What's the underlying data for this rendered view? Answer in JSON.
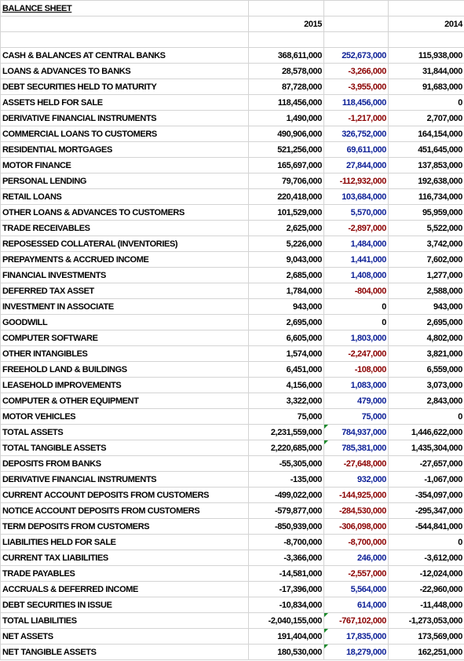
{
  "header": {
    "title": "BALANCE SHEET",
    "columns": [
      "2015",
      "2014"
    ]
  },
  "table": {
    "rows": [
      [
        "CASH & BALANCES AT CENTRAL BANKS",
        "368,611,000",
        "252,673,000",
        "115,938,000"
      ],
      [
        "LOANS & ADVANCES TO BANKS",
        "28,578,000",
        "-3,266,000",
        "31,844,000"
      ],
      [
        "DEBT SECURITIES HELD TO MATURITY",
        "87,728,000",
        "-3,955,000",
        "91,683,000"
      ],
      [
        "ASSETS HELD FOR SALE",
        "118,456,000",
        "118,456,000",
        "0"
      ],
      [
        "DERIVATIVE FINANCIAL INSTRUMENTS",
        "1,490,000",
        "-1,217,000",
        "2,707,000"
      ],
      [
        "COMMERCIAL LOANS TO CUSTOMERS",
        "490,906,000",
        "326,752,000",
        "164,154,000"
      ],
      [
        "RESIDENTIAL MORTGAGES",
        "521,256,000",
        "69,611,000",
        "451,645,000"
      ],
      [
        "MOTOR FINANCE",
        "165,697,000",
        "27,844,000",
        "137,853,000"
      ],
      [
        "PERSONAL LENDING",
        "79,706,000",
        "-112,932,000",
        "192,638,000"
      ],
      [
        "RETAIL LOANS",
        "220,418,000",
        "103,684,000",
        "116,734,000"
      ],
      [
        "OTHER LOANS & ADVANCES TO CUSTOMERS",
        "101,529,000",
        "5,570,000",
        "95,959,000"
      ],
      [
        "TRADE RECEIVABLES",
        "2,625,000",
        "-2,897,000",
        "5,522,000"
      ],
      [
        "REPOSESSED COLLATERAL (INVENTORIES)",
        "5,226,000",
        "1,484,000",
        "3,742,000"
      ],
      [
        "PREPAYMENTS & ACCRUED INCOME",
        "9,043,000",
        "1,441,000",
        "7,602,000"
      ],
      [
        "FINANCIAL INVESTMENTS",
        "2,685,000",
        "1,408,000",
        "1,277,000"
      ],
      [
        "DEFERRED TAX ASSET",
        "1,784,000",
        "-804,000",
        "2,588,000"
      ],
      [
        "INVESTMENT IN ASSOCIATE",
        "943,000",
        "0",
        "943,000"
      ],
      [
        "GOODWILL",
        "2,695,000",
        "0",
        "2,695,000"
      ],
      [
        "COMPUTER SOFTWARE",
        "6,605,000",
        "1,803,000",
        "4,802,000"
      ],
      [
        "OTHER INTANGIBLES",
        "1,574,000",
        "-2,247,000",
        "3,821,000"
      ],
      [
        "FREEHOLD LAND & BUILDINGS",
        "6,451,000",
        "-108,000",
        "6,559,000"
      ],
      [
        "LEASEHOLD IMPROVEMENTS",
        "4,156,000",
        "1,083,000",
        "3,073,000"
      ],
      [
        "COMPUTER & OTHER EQUIPMENT",
        "3,322,000",
        "479,000",
        "2,843,000"
      ],
      [
        "MOTOR VEHICLES",
        "75,000",
        "75,000",
        "0"
      ],
      [
        "TOTAL ASSETS",
        "2,231,559,000",
        "784,937,000",
        "1,446,622,000"
      ],
      [
        "TOTAL TANGIBLE ASSETS",
        "2,220,685,000",
        "785,381,000",
        "1,435,304,000"
      ],
      [
        "DEPOSITS FROM BANKS",
        "-55,305,000",
        "-27,648,000",
        "-27,657,000"
      ],
      [
        "DERIVATIVE FINANCIAL INSTRUMENTS",
        "-135,000",
        "932,000",
        "-1,067,000"
      ],
      [
        "CURRENT ACCOUNT DEPOSITS FROM CUSTOMERS",
        "-499,022,000",
        "-144,925,000",
        "-354,097,000"
      ],
      [
        "NOTICE ACCOUNT DEPOSITS FROM CUSTOMERS",
        "-579,877,000",
        "-284,530,000",
        "-295,347,000"
      ],
      [
        "TERM DEPOSITS FROM CUSTOMERS",
        "-850,939,000",
        "-306,098,000",
        "-544,841,000"
      ],
      [
        "LIABILITIES HELD FOR SALE",
        "-8,700,000",
        "-8,700,000",
        "0"
      ],
      [
        "CURRENT TAX LIABILITIES",
        "-3,366,000",
        "246,000",
        "-3,612,000"
      ],
      [
        "TRADE PAYABLES",
        "-14,581,000",
        "-2,557,000",
        "-12,024,000"
      ],
      [
        "ACCRUALS & DEFERRED INCOME",
        "-17,396,000",
        "5,564,000",
        "-22,960,000"
      ],
      [
        "DEBT SECURITIES IN ISSUE",
        "-10,834,000",
        "614,000",
        "-11,448,000"
      ],
      [
        "TOTAL LIABILITIES",
        "-2,040,155,000",
        "-767,102,000",
        "-1,273,053,000"
      ],
      [
        "NET ASSETS",
        "191,404,000",
        "17,835,000",
        "173,569,000"
      ],
      [
        "NET TANGIBLE ASSETS",
        "180,530,000",
        "18,279,000",
        "162,251,000"
      ]
    ]
  }
}
